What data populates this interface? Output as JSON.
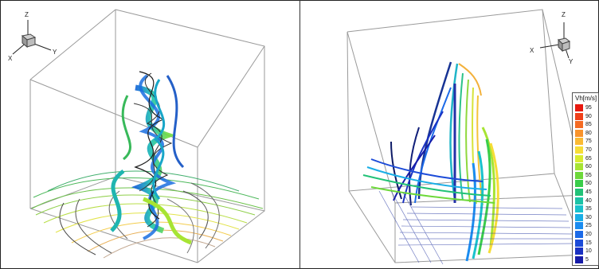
{
  "left_panel": {
    "axes": {
      "z": "Z",
      "x": "X",
      "y": "Y"
    }
  },
  "right_panel": {
    "axes": {
      "z": "Z",
      "x": "X",
      "y": "Y"
    }
  },
  "legend": {
    "title": "Vh[m/s]",
    "entries": [
      {
        "label": "95",
        "color": "#e8190f"
      },
      {
        "label": "90",
        "color": "#f0401a"
      },
      {
        "label": "85",
        "color": "#f56a22"
      },
      {
        "label": "80",
        "color": "#f9932b"
      },
      {
        "label": "75",
        "color": "#fbba33"
      },
      {
        "label": "70",
        "color": "#f7dd36"
      },
      {
        "label": "65",
        "color": "#d9ec2f"
      },
      {
        "label": "60",
        "color": "#a7e433"
      },
      {
        "label": "55",
        "color": "#6dd83a"
      },
      {
        "label": "50",
        "color": "#3acd4a"
      },
      {
        "label": "45",
        "color": "#22c277"
      },
      {
        "label": "40",
        "color": "#1cc3a6"
      },
      {
        "label": "35",
        "color": "#19c2cc"
      },
      {
        "label": "30",
        "color": "#1aaee6"
      },
      {
        "label": "25",
        "color": "#1b8cf0"
      },
      {
        "label": "20",
        "color": "#1c6ae8"
      },
      {
        "label": "15",
        "color": "#1c4bd8"
      },
      {
        "label": "10",
        "color": "#1a31c2"
      },
      {
        "label": "5",
        "color": "#171ca8"
      }
    ]
  }
}
